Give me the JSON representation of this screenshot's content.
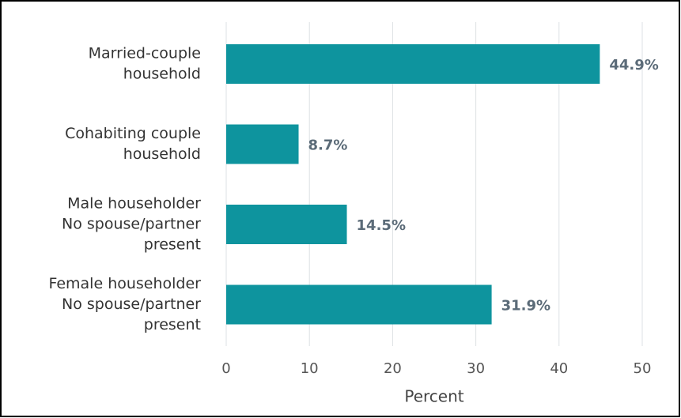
{
  "chart_data": {
    "type": "bar",
    "orientation": "horizontal",
    "categories": [
      [
        "Married-couple",
        "household"
      ],
      [
        "Cohabiting couple",
        "household"
      ],
      [
        "Male householder",
        "No spouse/partner",
        "present"
      ],
      [
        "Female householder",
        "No spouse/partner",
        "present"
      ]
    ],
    "values": [
      44.9,
      8.7,
      14.5,
      31.9
    ],
    "value_labels": [
      "44.9%",
      "8.7%",
      "14.5%",
      "31.9%"
    ],
    "color": "#0e949e",
    "xlabel": "Percent",
    "xlim": [
      0,
      50
    ],
    "xticks": [
      0,
      10,
      20,
      30,
      40,
      50
    ],
    "grid": true
  }
}
